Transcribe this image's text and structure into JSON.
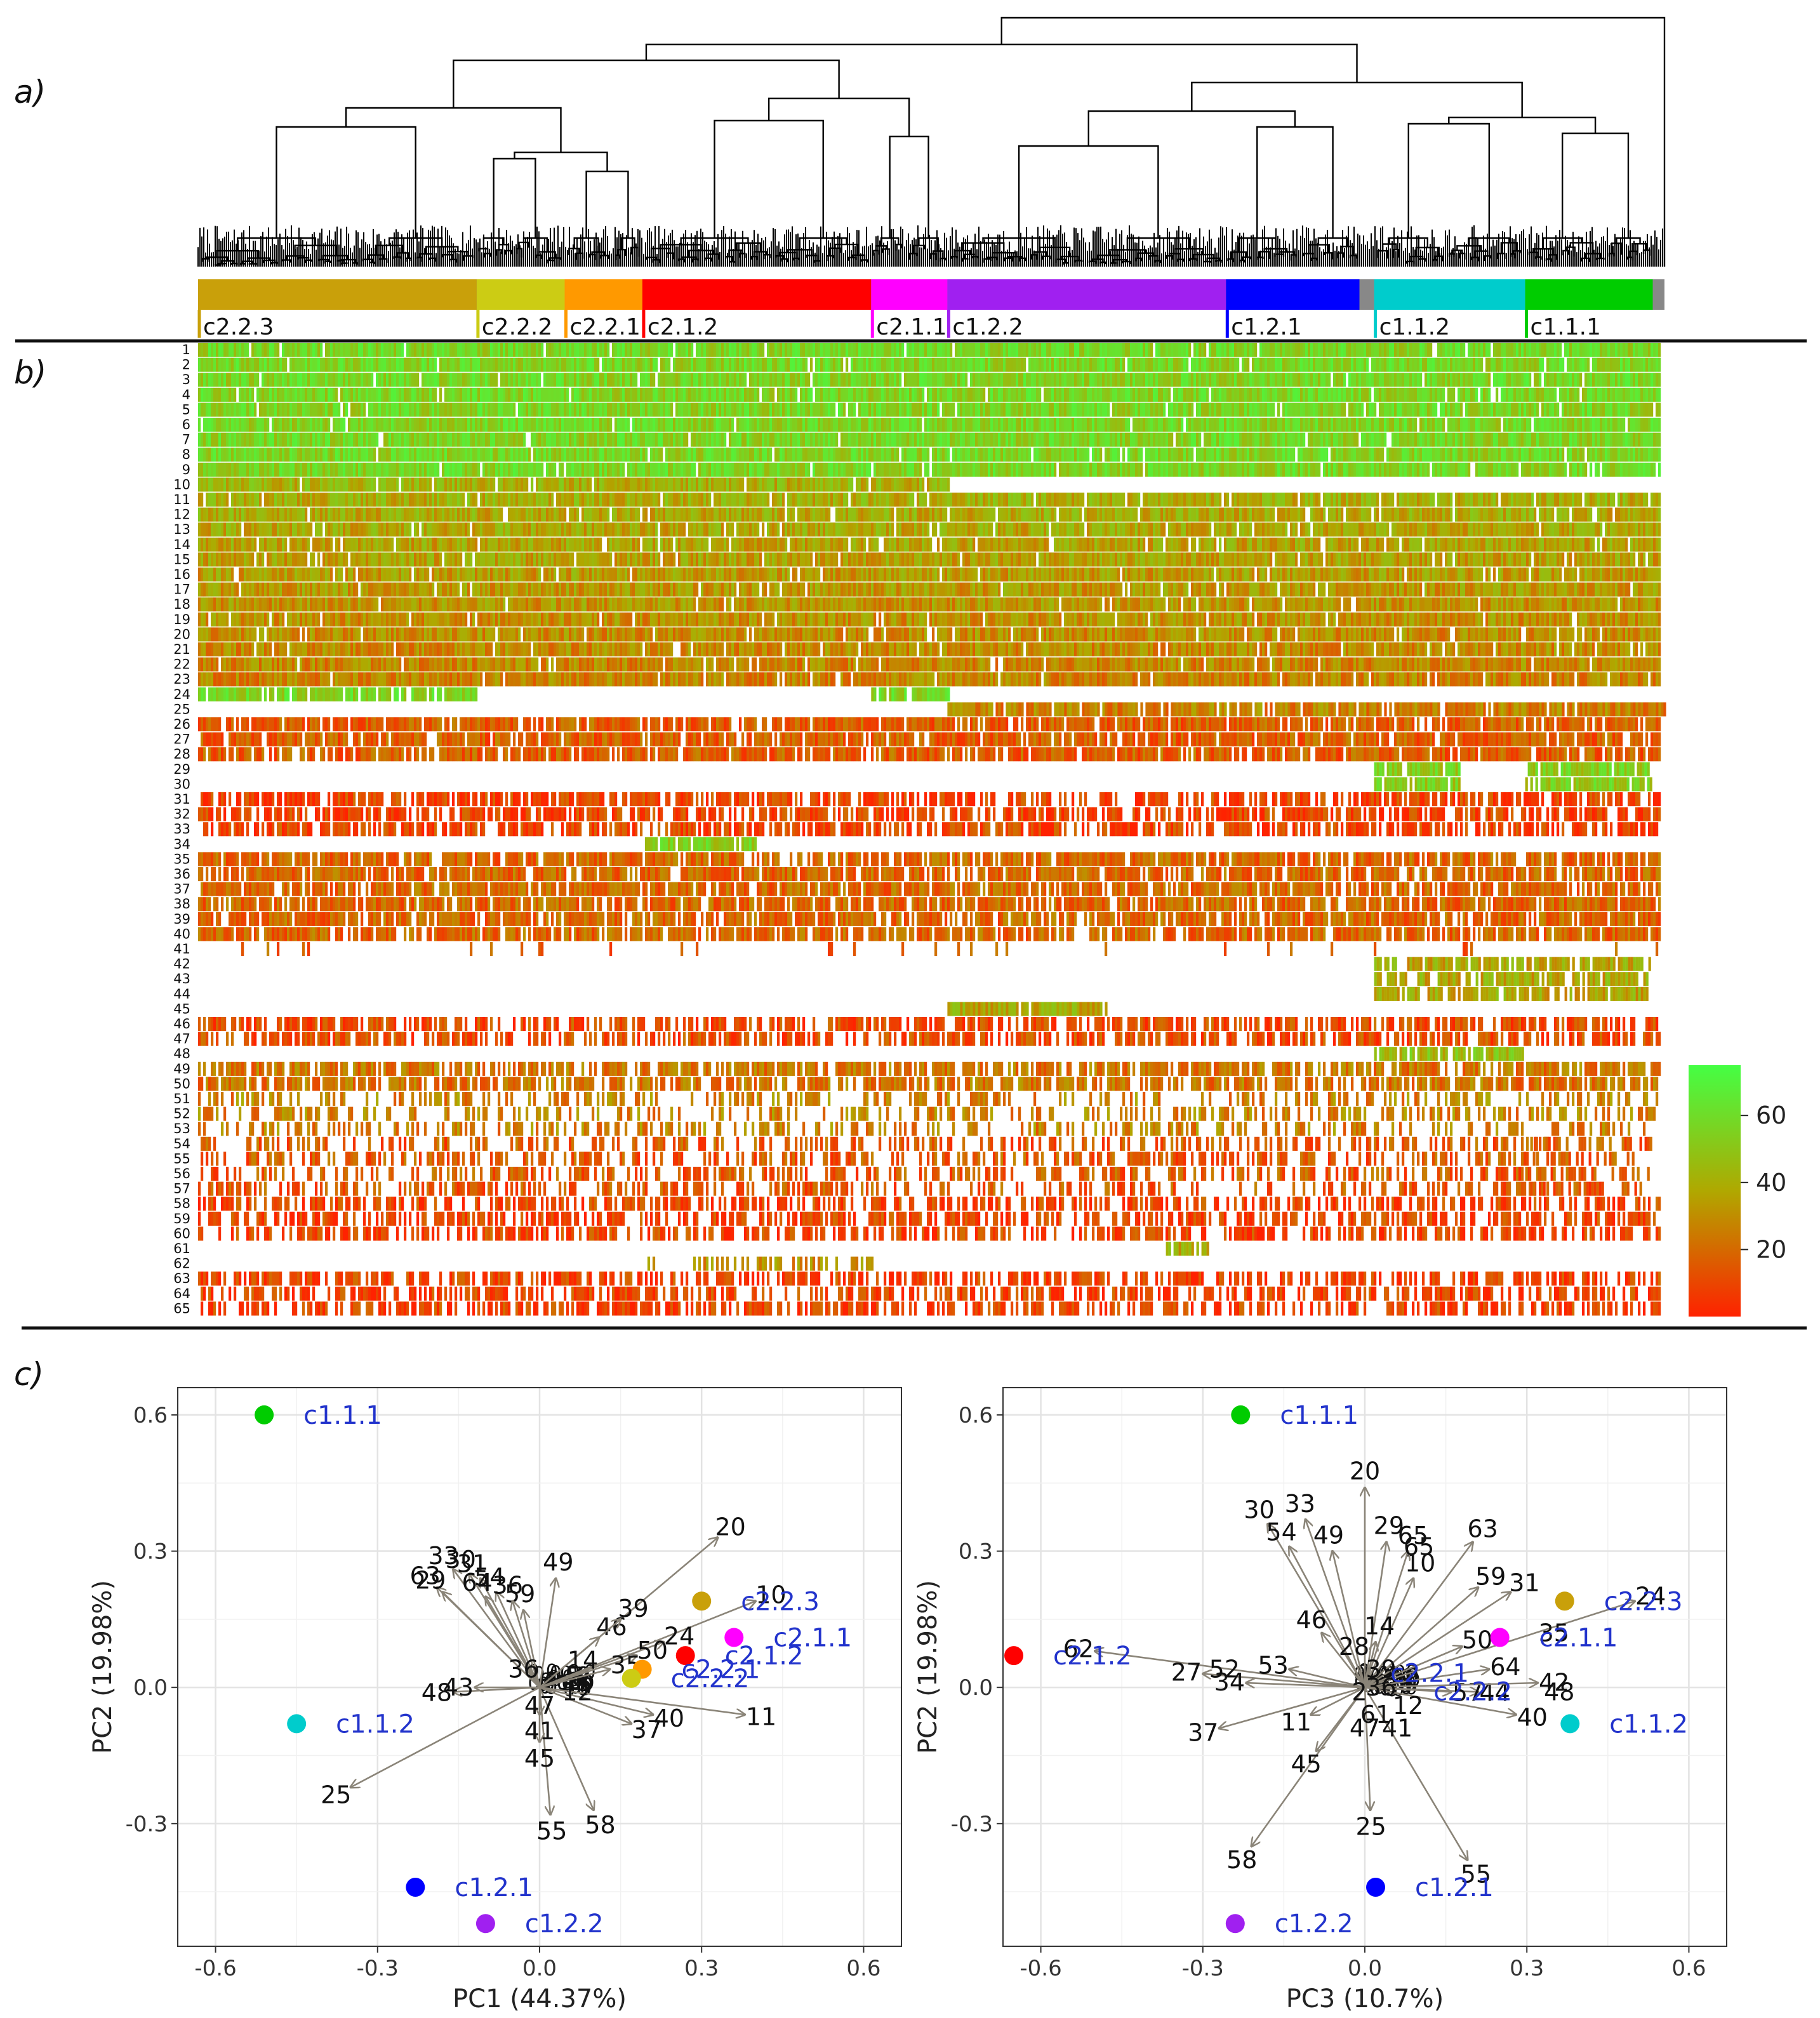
{
  "panels": {
    "a": "a)",
    "b": "b)",
    "c": "c)"
  },
  "clusters": [
    {
      "label": "c2.2.3",
      "color": "#c9a00a",
      "span": [
        0,
        0.19
      ]
    },
    {
      "label": "c2.2.2",
      "color": "#cccc14",
      "span": [
        0.19,
        0.25
      ]
    },
    {
      "label": "c2.2.1",
      "color": "#ff9900",
      "span": [
        0.25,
        0.303
      ]
    },
    {
      "label": "c2.1.2",
      "color": "#ff0000",
      "span": [
        0.303,
        0.459
      ]
    },
    {
      "label": "c2.1.1",
      "color": "#ff00ff",
      "span": [
        0.459,
        0.511
      ]
    },
    {
      "label": "c1.2.2",
      "color": "#a020f0",
      "span": [
        0.511,
        0.701
      ]
    },
    {
      "label": "c1.2.1",
      "color": "#0000ff",
      "span": [
        0.701,
        0.792
      ]
    },
    {
      "label": "c1.1.2",
      "color": "#00cccc",
      "span": [
        0.802,
        0.905
      ]
    },
    {
      "label": "c1.1.1",
      "color": "#00cc00",
      "span": [
        0.905,
        0.992
      ]
    }
  ],
  "heatmap": {
    "row_labels": [
      "1",
      "2",
      "3",
      "4",
      "5",
      "6",
      "7",
      "8",
      "9",
      "10",
      "11",
      "12",
      "13",
      "14",
      "15",
      "16",
      "17",
      "18",
      "19",
      "20",
      "21",
      "22",
      "23",
      "24",
      "25",
      "26",
      "27",
      "28",
      "29",
      "30",
      "31",
      "32",
      "33",
      "34",
      "35",
      "36",
      "37",
      "38",
      "39",
      "40",
      "41",
      "42",
      "43",
      "44",
      "45",
      "46",
      "47",
      "48",
      "49",
      "50",
      "51",
      "52",
      "53",
      "54",
      "55",
      "56",
      "57",
      "58",
      "59",
      "60",
      "61",
      "62",
      "63",
      "64",
      "65"
    ],
    "colorbar": {
      "ticks": [
        "60",
        "40",
        "20"
      ],
      "min": 0,
      "max": 75,
      "low_color": "#ff2200",
      "mid_color": "#b0a800",
      "high_color": "#44ff44"
    }
  },
  "chart_data": [
    {
      "type": "scatter",
      "subtype": "biplot",
      "xlabel": "PC1 (44.37%)",
      "ylabel": "PC2 (19.98%)",
      "xlim": [
        -0.67,
        0.67
      ],
      "ylim": [
        -0.57,
        0.66
      ],
      "xticks": [
        "-0.6",
        "-0.3",
        "0.0",
        "0.3",
        "0.6"
      ],
      "yticks": [
        "0.6",
        "0.3",
        "0.0",
        "-0.3"
      ],
      "points": [
        {
          "label": "c1.1.1",
          "x": -0.51,
          "y": 0.6,
          "color": "#00cc00"
        },
        {
          "label": "c1.1.2",
          "x": -0.45,
          "y": -0.08,
          "color": "#00cccc"
        },
        {
          "label": "c1.2.1",
          "x": -0.23,
          "y": -0.44,
          "color": "#0000ff"
        },
        {
          "label": "c1.2.2",
          "x": -0.1,
          "y": -0.52,
          "color": "#a020f0"
        },
        {
          "label": "c2.2.3",
          "x": 0.3,
          "y": 0.19,
          "color": "#c9a00a"
        },
        {
          "label": "c2.1.1",
          "x": 0.36,
          "y": 0.11,
          "color": "#ff00ff"
        },
        {
          "label": "c2.1.2",
          "x": 0.27,
          "y": 0.07,
          "color": "#ff0000"
        },
        {
          "label": "c2.2.1",
          "x": 0.19,
          "y": 0.04,
          "color": "#ff9900"
        },
        {
          "label": "c2.2.2",
          "x": 0.17,
          "y": 0.02,
          "color": "#cccc14"
        }
      ],
      "arrows": [
        {
          "label": "20",
          "x": 0.33,
          "y": 0.33
        },
        {
          "label": "10",
          "x": 0.4,
          "y": 0.19
        },
        {
          "label": "11",
          "x": 0.38,
          "y": -0.06
        },
        {
          "label": "40",
          "x": 0.21,
          "y": -0.06
        },
        {
          "label": "37",
          "x": 0.17,
          "y": -0.08
        },
        {
          "label": "25",
          "x": -0.35,
          "y": -0.22
        },
        {
          "label": "55",
          "x": 0.02,
          "y": -0.28
        },
        {
          "label": "58",
          "x": 0.1,
          "y": -0.27
        },
        {
          "label": "45",
          "x": 0.0,
          "y": -0.12
        },
        {
          "label": "41",
          "x": 0.0,
          "y": -0.06
        },
        {
          "label": "49",
          "x": 0.03,
          "y": 0.24
        },
        {
          "label": "59",
          "x": -0.03,
          "y": 0.17
        },
        {
          "label": "33",
          "x": -0.16,
          "y": 0.26
        },
        {
          "label": "30",
          "x": -0.13,
          "y": 0.25
        },
        {
          "label": "31",
          "x": -0.11,
          "y": 0.24
        },
        {
          "label": "63",
          "x": -0.19,
          "y": 0.22
        },
        {
          "label": "29",
          "x": -0.18,
          "y": 0.21
        },
        {
          "label": "64",
          "x": -0.1,
          "y": 0.2
        },
        {
          "label": "54",
          "x": -0.08,
          "y": 0.21
        },
        {
          "label": "36",
          "x": -0.05,
          "y": 0.19
        },
        {
          "label": "48",
          "x": -0.16,
          "y": -0.01
        },
        {
          "label": "43",
          "x": -0.12,
          "y": 0.0
        },
        {
          "label": "46",
          "x": 0.11,
          "y": 0.11
        },
        {
          "label": "39",
          "x": 0.15,
          "y": 0.15
        },
        {
          "label": "24",
          "x": 0.23,
          "y": 0.1
        },
        {
          "label": "50",
          "x": 0.18,
          "y": 0.07
        },
        {
          "label": "35",
          "x": 0.13,
          "y": 0.04
        }
      ],
      "label_only": [
        {
          "label": "36",
          "x": -0.03,
          "y": 0.04
        },
        {
          "label": "14",
          "x": 0.08,
          "y": 0.06
        },
        {
          "label": "12",
          "x": 0.07,
          "y": -0.01
        },
        {
          "label": "47",
          "x": 0.0,
          "y": -0.04
        }
      ]
    },
    {
      "type": "scatter",
      "subtype": "biplot",
      "xlabel": "PC3 (10.7%)",
      "ylabel": "PC2 (19.98%)",
      "xlim": [
        -0.67,
        0.67
      ],
      "ylim": [
        -0.57,
        0.66
      ],
      "xticks": [
        "-0.6",
        "-0.3",
        "0.0",
        "0.3",
        "0.6"
      ],
      "yticks": [
        "0.6",
        "0.3",
        "0.0",
        "-0.3"
      ],
      "points": [
        {
          "label": "c1.1.1",
          "x": -0.23,
          "y": 0.6,
          "color": "#00cc00"
        },
        {
          "label": "c2.1.2",
          "x": -0.65,
          "y": 0.07,
          "color": "#ff0000"
        },
        {
          "label": "c2.2.3",
          "x": 0.37,
          "y": 0.19,
          "color": "#c9a00a"
        },
        {
          "label": "c2.1.1",
          "x": 0.25,
          "y": 0.11,
          "color": "#ff00ff"
        },
        {
          "label": "c1.1.2",
          "x": 0.38,
          "y": -0.08,
          "color": "#00cccc"
        },
        {
          "label": "c1.2.1",
          "x": 0.02,
          "y": -0.44,
          "color": "#0000ff"
        },
        {
          "label": "c1.2.2",
          "x": -0.24,
          "y": -0.52,
          "color": "#a020f0"
        }
      ],
      "arrows": [
        {
          "label": "20",
          "x": 0.0,
          "y": 0.44
        },
        {
          "label": "63",
          "x": 0.2,
          "y": 0.32
        },
        {
          "label": "10",
          "x": 0.09,
          "y": 0.24
        },
        {
          "label": "30",
          "x": -0.18,
          "y": 0.36
        },
        {
          "label": "33",
          "x": -0.11,
          "y": 0.37
        },
        {
          "label": "49",
          "x": -0.06,
          "y": 0.3
        },
        {
          "label": "29",
          "x": 0.04,
          "y": 0.32
        },
        {
          "label": "65",
          "x": 0.08,
          "y": 0.3
        },
        {
          "label": "54",
          "x": -0.14,
          "y": 0.31
        },
        {
          "label": "59",
          "x": 0.21,
          "y": 0.22
        },
        {
          "label": "31",
          "x": 0.27,
          "y": 0.21
        },
        {
          "label": "24",
          "x": 0.5,
          "y": 0.19
        },
        {
          "label": "62",
          "x": -0.5,
          "y": 0.08
        },
        {
          "label": "27",
          "x": -0.3,
          "y": 0.03
        },
        {
          "label": "34",
          "x": -0.22,
          "y": 0.01
        },
        {
          "label": "53",
          "x": -0.14,
          "y": 0.04
        },
        {
          "label": "37",
          "x": -0.27,
          "y": -0.09
        },
        {
          "label": "58",
          "x": -0.21,
          "y": -0.35
        },
        {
          "label": "45",
          "x": -0.09,
          "y": -0.14
        },
        {
          "label": "11",
          "x": -0.1,
          "y": -0.06
        },
        {
          "label": "25",
          "x": 0.01,
          "y": -0.27
        },
        {
          "label": "55",
          "x": 0.19,
          "y": -0.38
        },
        {
          "label": "40",
          "x": 0.28,
          "y": -0.06
        },
        {
          "label": "44",
          "x": 0.21,
          "y": -0.01
        },
        {
          "label": "57",
          "x": 0.16,
          "y": -0.01
        },
        {
          "label": "42",
          "x": 0.32,
          "y": 0.01
        },
        {
          "label": "50",
          "x": 0.18,
          "y": 0.09
        },
        {
          "label": "64",
          "x": 0.23,
          "y": 0.04
        },
        {
          "label": "46",
          "x": -0.08,
          "y": 0.12
        },
        {
          "label": "14",
          "x": 0.02,
          "y": 0.1
        }
      ],
      "label_only": [
        {
          "label": "65",
          "x": 0.1,
          "y": 0.31
        },
        {
          "label": "35",
          "x": 0.35,
          "y": 0.12
        },
        {
          "label": "48",
          "x": 0.36,
          "y": -0.01
        },
        {
          "label": "52",
          "x": -0.26,
          "y": 0.04
        },
        {
          "label": "28",
          "x": -0.02,
          "y": 0.09
        },
        {
          "label": "39",
          "x": 0.03,
          "y": 0.04
        },
        {
          "label": "12",
          "x": 0.08,
          "y": -0.04
        },
        {
          "label": "47",
          "x": 0.0,
          "y": -0.09
        },
        {
          "label": "41",
          "x": 0.06,
          "y": -0.09
        },
        {
          "label": "61",
          "x": 0.02,
          "y": -0.06
        },
        {
          "label": "2",
          "x": -0.01,
          "y": -0.01
        },
        {
          "label": "36",
          "x": 0.03,
          "y": 0.0
        },
        {
          "label": "c2.2.1",
          "x": 0.12,
          "y": 0.03,
          "color": "#2233cc"
        },
        {
          "label": "c2.2.2",
          "x": 0.2,
          "y": -0.01,
          "color": "#2233cc"
        }
      ]
    }
  ]
}
